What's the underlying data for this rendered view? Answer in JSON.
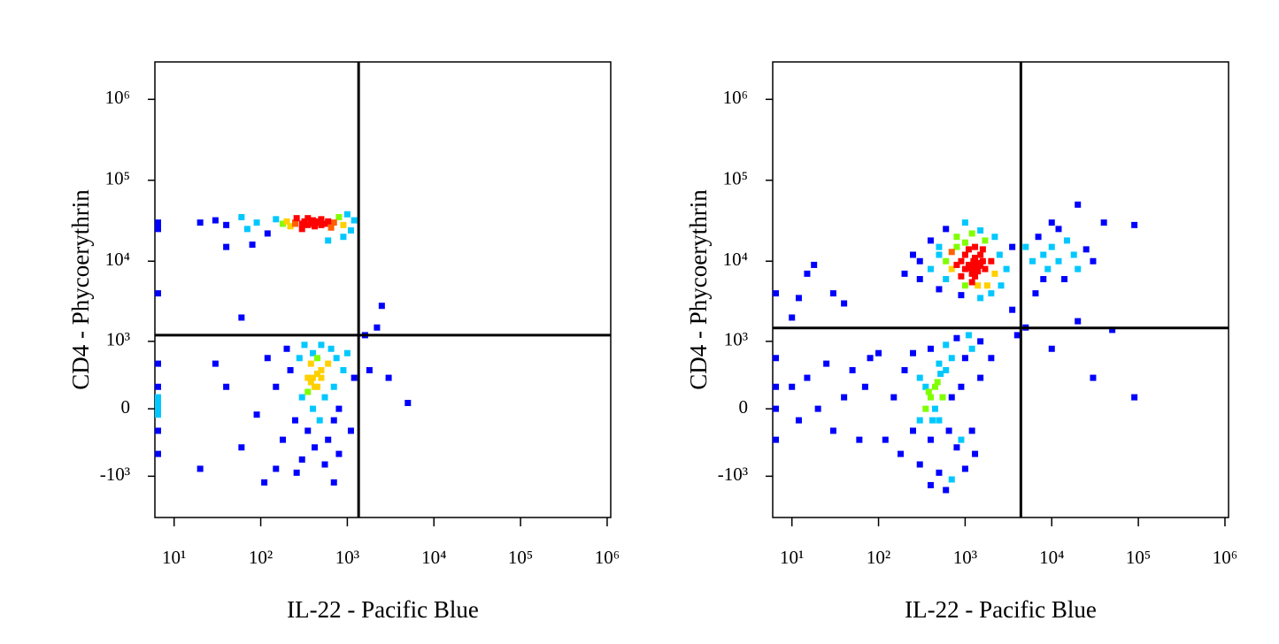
{
  "chart_data": [
    {
      "type": "scatter",
      "xlabel": "IL-22 - Pacific Blue",
      "ylabel": "CD4 - Phycoerythrin",
      "xscale": "log",
      "yscale": "biexponential",
      "xlim": [
        6,
        1100000
      ],
      "ylim": [
        -3300,
        2900000
      ],
      "xticks": [
        {
          "value": 10,
          "label": "10¹"
        },
        {
          "value": 100,
          "label": "10²"
        },
        {
          "value": 1000,
          "label": "10³"
        },
        {
          "value": 10000,
          "label": "10⁴"
        },
        {
          "value": 100000,
          "label": "10⁵"
        },
        {
          "value": 1000000,
          "label": "10⁶"
        }
      ],
      "yticks": [
        {
          "value": 1000000,
          "label": "10⁶"
        },
        {
          "value": 100000,
          "label": "10⁵"
        },
        {
          "value": 10000,
          "label": "10⁴"
        },
        {
          "value": 1000,
          "label": "10³"
        },
        0,
        {
          "value": -1000,
          "label": "-10³"
        }
      ],
      "quadrant": {
        "x": 1350,
        "y": 1200
      },
      "palette": [
        "#0000ff",
        "#00c8ff",
        "#80ff00",
        "#ffd000",
        "#ff6000",
        "#ff0000"
      ],
      "x": [
        20,
        30,
        40,
        60,
        70,
        90,
        120,
        150,
        180,
        200,
        220,
        250,
        260,
        300,
        320,
        350,
        380,
        400,
        420,
        450,
        500,
        550,
        600,
        650,
        700,
        800,
        900,
        1100,
        1200,
        300,
        350,
        400,
        450,
        500,
        250,
        80,
        600,
        40,
        900,
        1000,
        6,
        6,
        6,
        6,
        6,
        6,
        6,
        6,
        6,
        6,
        6,
        6,
        120,
        150,
        180,
        200,
        220,
        250,
        280,
        300,
        300,
        320,
        350,
        350,
        380,
        400,
        400,
        420,
        450,
        450,
        480,
        500,
        500,
        550,
        550,
        600,
        600,
        650,
        700,
        700,
        750,
        800,
        800,
        900,
        1000,
        1100,
        1200,
        400,
        450,
        380,
        420,
        500,
        350,
        260,
        700,
        150,
        90,
        60,
        40,
        30,
        20,
        110,
        2500,
        5000,
        3000,
        60,
        2200,
        1600,
        1800
      ],
      "y": [
        30000,
        32000,
        28000,
        35000,
        25000,
        30000,
        22000,
        33000,
        29000,
        31000,
        27000,
        30000,
        34000,
        29000,
        31000,
        28000,
        30000,
        32000,
        27000,
        30000,
        33000,
        29000,
        31000,
        26000,
        30000,
        35000,
        28000,
        24000,
        32000,
        25000,
        34000,
        29000,
        31000,
        28000,
        29000,
        16000,
        18000,
        15000,
        20000,
        38000,
        30000,
        25000,
        28000,
        0,
        100,
        -200,
        200,
        -500,
        500,
        -50,
        50,
        4000,
        600,
        200,
        -300,
        800,
        400,
        -100,
        600,
        100,
        -600,
        900,
        300,
        -200,
        500,
        0,
        700,
        -400,
        200,
        600,
        -100,
        400,
        900,
        100,
        -700,
        500,
        -300,
        800,
        200,
        -100,
        600,
        0,
        -500,
        400,
        700,
        -200,
        300,
        300,
        350,
        250,
        200,
        300,
        150,
        -900,
        -1200,
        -800,
        -50,
        -400,
        200,
        500,
        -800,
        -1200,
        2800,
        50,
        300,
        2000,
        1500,
        1200,
        400
      ]
    },
    {
      "type": "scatter",
      "xlabel": "IL-22 - Pacific Blue",
      "ylabel": "CD4 - Phycoerythrin",
      "xscale": "log",
      "yscale": "biexponential",
      "xlim": [
        6,
        1100000
      ],
      "ylim": [
        -3300,
        2900000
      ],
      "xticks": [
        {
          "value": 10,
          "label": "10¹"
        },
        {
          "value": 100,
          "label": "10²"
        },
        {
          "value": 1000,
          "label": "10³"
        },
        {
          "value": 10000,
          "label": "10⁴"
        },
        {
          "value": 100000,
          "label": "10⁵"
        },
        {
          "value": 1000000,
          "label": "10⁶"
        }
      ],
      "yticks": [
        {
          "value": 1000000,
          "label": "10⁶"
        },
        {
          "value": 100000,
          "label": "10⁵"
        },
        {
          "value": 10000,
          "label": "10⁴"
        },
        {
          "value": 1000,
          "label": "10³"
        },
        0,
        {
          "value": -1000,
          "label": "-10³"
        }
      ],
      "quadrant": {
        "x": 4400,
        "y": 1480
      },
      "palette": [
        "#0000ff",
        "#00c8ff",
        "#80ff00",
        "#ffd000",
        "#ff6000",
        "#ff0000"
      ],
      "x": [
        1300,
        1200,
        1400,
        1350,
        1250,
        1500,
        1100,
        1300,
        1400,
        1200,
        1000,
        1600,
        1500,
        900,
        1000,
        1700,
        800,
        1100,
        1300,
        1200,
        900,
        700,
        600,
        500,
        700,
        800,
        1000,
        1300,
        1600,
        2000,
        2200,
        1800,
        1400,
        1000,
        600,
        400,
        300,
        500,
        800,
        1200,
        1700,
        2500,
        3000,
        2600,
        2000,
        1500,
        900,
        500,
        300,
        200,
        250,
        400,
        600,
        1000,
        1500,
        2200,
        3500,
        1300,
        1350,
        1250,
        1450,
        1150,
        5000,
        6000,
        7000,
        8000,
        9000,
        10000,
        12000,
        15000,
        18000,
        20000,
        25000,
        30000,
        12000,
        8000,
        14000,
        20000,
        10000,
        40000,
        90000,
        6500,
        400,
        350,
        450,
        500,
        300,
        600,
        400,
        500,
        700,
        250,
        800,
        900,
        1000,
        1200,
        1500,
        200,
        150,
        180,
        300,
        500,
        700,
        1000,
        1300,
        600,
        400,
        800,
        1100,
        1500,
        2000,
        250,
        350,
        450,
        550,
        420,
        380,
        480,
        650,
        300,
        520,
        700,
        900,
        1200,
        400,
        600,
        120,
        100,
        10,
        12,
        15,
        20,
        25,
        30,
        40,
        50,
        60,
        70,
        80,
        10,
        12,
        15,
        18,
        30,
        40,
        6,
        6,
        6,
        6,
        6,
        30000,
        90000,
        5000,
        4000,
        10000,
        20000,
        50000,
        3500
      ],
      "y": [
        9000,
        8500,
        9500,
        8000,
        10000,
        9000,
        9000,
        11000,
        7500,
        7000,
        8000,
        10000,
        12000,
        10000,
        12000,
        8000,
        9000,
        14000,
        6500,
        5500,
        6500,
        8000,
        10000,
        12000,
        13000,
        15000,
        17000,
        15000,
        14000,
        10000,
        7000,
        5000,
        5000,
        5000,
        6000,
        8000,
        10000,
        15000,
        20000,
        22000,
        18000,
        12000,
        8000,
        5000,
        4000,
        3500,
        3800,
        4500,
        6000,
        7000,
        12000,
        18000,
        25000,
        30000,
        24000,
        20000,
        15000,
        8500,
        9200,
        9500,
        8800,
        8200,
        15000,
        10000,
        20000,
        12000,
        8000,
        15000,
        10000,
        18000,
        12000,
        8000,
        14000,
        10000,
        25000,
        6000,
        6000,
        50000,
        30000,
        30000,
        28000,
        4000,
        100,
        0,
        200,
        -100,
        300,
        400,
        -300,
        500,
        100,
        -200,
        -400,
        200,
        600,
        -200,
        300,
        400,
        100,
        -500,
        -700,
        -900,
        -1100,
        -800,
        -500,
        900,
        800,
        1100,
        1200,
        1000,
        600,
        700,
        200,
        0,
        100,
        -100,
        150,
        250,
        -200,
        -100,
        350,
        600,
        -300,
        800,
        -1300,
        -1500,
        -300,
        700,
        200,
        -100,
        300,
        0,
        500,
        -200,
        100,
        400,
        -300,
        200,
        600,
        2000,
        3500,
        7000,
        9000,
        4000,
        3000,
        0,
        200,
        -300,
        4000,
        600,
        300,
        100,
        1500,
        1200,
        800,
        1800,
        1400,
        2500
      ]
    }
  ]
}
